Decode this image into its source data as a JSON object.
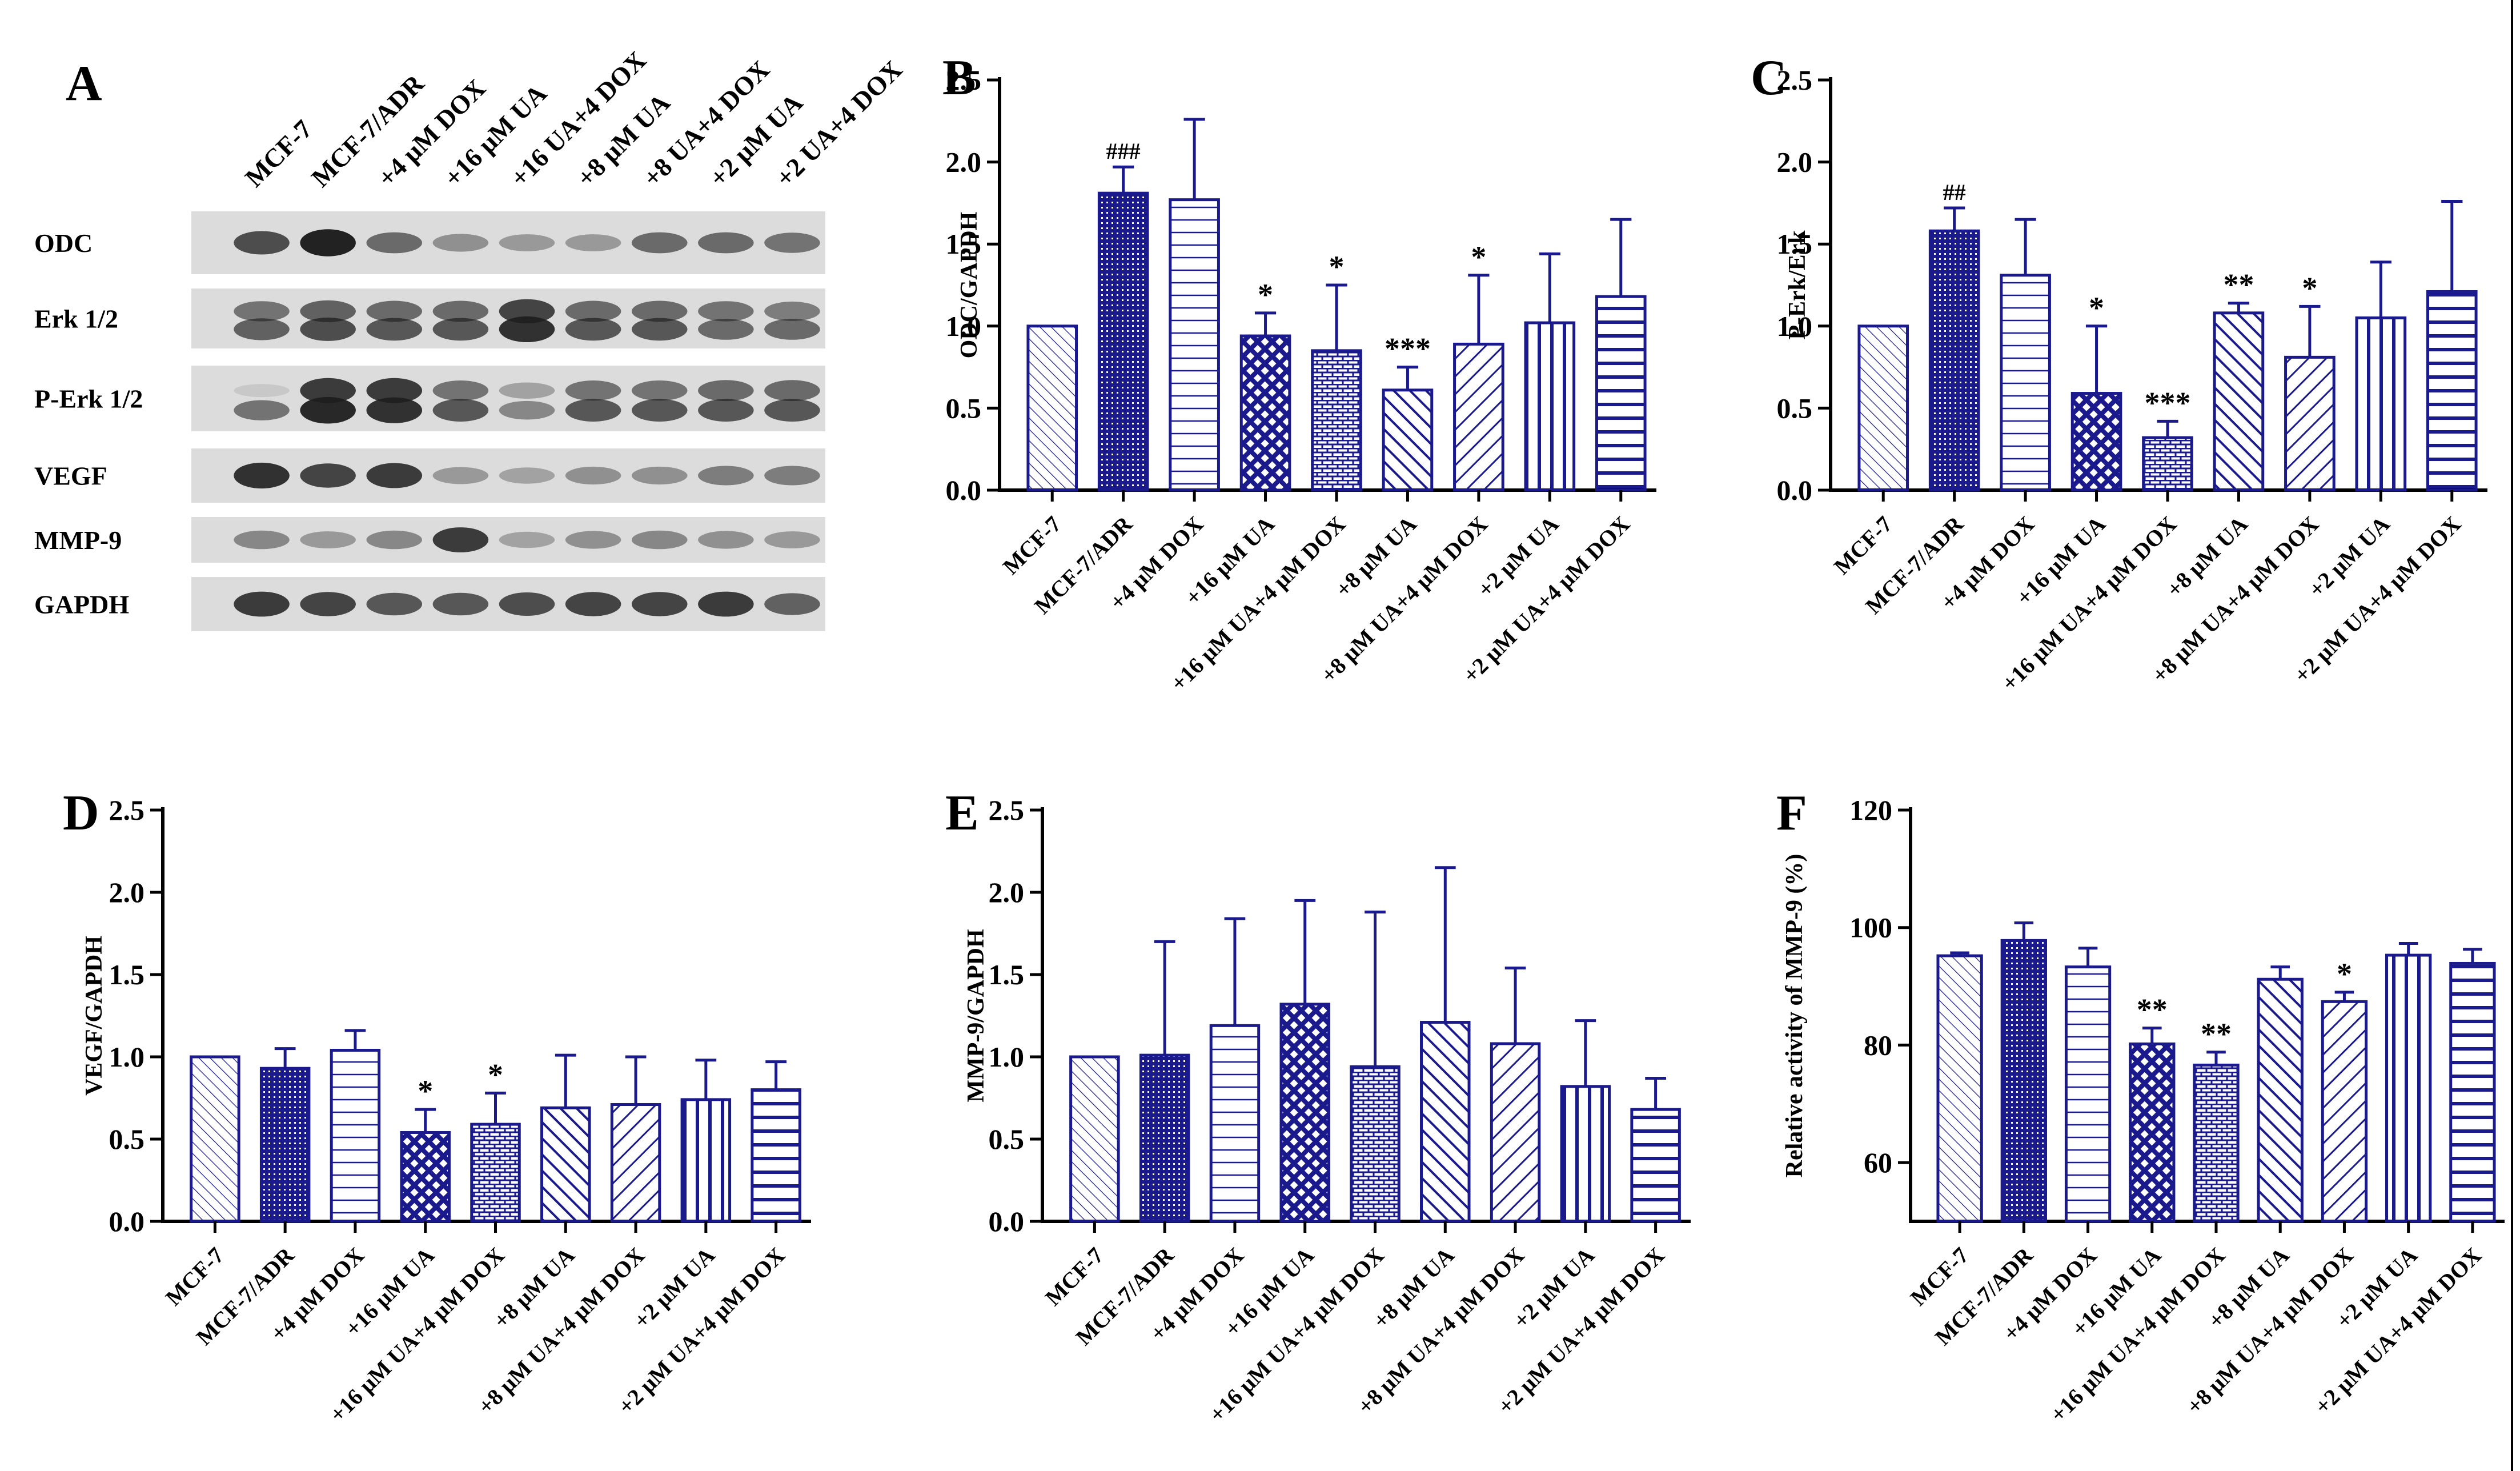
{
  "colors": {
    "bar": "#1a1a8c",
    "axis": "#000000",
    "blot_bg": "#dcdcdc",
    "band": "#1e1e1e"
  },
  "blot": {
    "letter": "A",
    "lanes": [
      "MCF-7",
      "MCF-7/ADR",
      "+4 μM DOX",
      "+16 μM UA",
      "+16 UA+4 DOX",
      "+8 μM UA",
      "+8 UA+4 DOX",
      "+2 μM UA",
      "+2 UA+4 DOX"
    ],
    "rows": [
      {
        "label": "ODC",
        "intensity": [
          [
            0.75,
            0.98,
            0.6,
            0.4,
            0.35,
            0.35,
            0.6,
            0.6,
            0.55
          ]
        ]
      },
      {
        "label": "Erk 1/2",
        "intensity": [
          [
            0.55,
            0.65,
            0.6,
            0.6,
            0.8,
            0.6,
            0.6,
            0.55,
            0.5
          ],
          [
            0.65,
            0.75,
            0.7,
            0.7,
            0.9,
            0.7,
            0.7,
            0.6,
            0.6
          ]
        ]
      },
      {
        "label": "P-Erk 1/2",
        "intensity": [
          [
            0.1,
            0.85,
            0.85,
            0.55,
            0.3,
            0.55,
            0.55,
            0.6,
            0.6
          ],
          [
            0.55,
            0.95,
            0.9,
            0.7,
            0.45,
            0.7,
            0.7,
            0.7,
            0.7
          ]
        ]
      },
      {
        "label": "VEGF",
        "intensity": [
          [
            0.9,
            0.8,
            0.85,
            0.35,
            0.3,
            0.4,
            0.4,
            0.5,
            0.5
          ]
        ]
      },
      {
        "label": "MMP-9",
        "intensity": [
          [
            0.45,
            0.35,
            0.45,
            0.85,
            0.3,
            0.4,
            0.45,
            0.4,
            0.35
          ]
        ]
      },
      {
        "label": "GAPDH",
        "intensity": [
          [
            0.85,
            0.8,
            0.7,
            0.7,
            0.75,
            0.8,
            0.8,
            0.85,
            0.65
          ]
        ]
      }
    ]
  },
  "chart_data": [
    {
      "type": "bar",
      "panel": "B",
      "ylabel": "ODC/GAPDH",
      "ylim": [
        0,
        2.5
      ],
      "yticks": [
        "0.0",
        "0.5",
        "1.0",
        "1.5",
        "2.0",
        "2.5"
      ],
      "categories": [
        "MCF-7",
        "MCF-7/ADR",
        "+4 μM DOX",
        "+16 μM UA",
        "+16 μM UA+4 μM DOX",
        "+8 μM UA",
        "+8 μM UA+4 μM DOX",
        "+2 μM UA",
        "+2 μM UA+4 μM DOX"
      ],
      "values": [
        1.0,
        1.81,
        1.77,
        0.94,
        0.85,
        0.61,
        0.89,
        1.02,
        1.18
      ],
      "errors": [
        0,
        0.16,
        0.49,
        0.14,
        0.4,
        0.14,
        0.42,
        0.42,
        0.47
      ],
      "significance": [
        "",
        "###",
        "",
        "*",
        "*",
        "***",
        "*",
        "",
        ""
      ]
    },
    {
      "type": "bar",
      "panel": "C",
      "ylabel": "P-Erk/Erk",
      "ylim": [
        0,
        2.5
      ],
      "yticks": [
        "0.0",
        "0.5",
        "1.0",
        "1.5",
        "2.0",
        "2.5"
      ],
      "categories": [
        "MCF-7",
        "MCF-7/ADR",
        "+4 μM DOX",
        "+16 μM UA",
        "+16 μM UA+4 μM DOX",
        "+8 μM UA",
        "+8 μM UA+4 μM DOX",
        "+2 μM UA",
        "+2 μM UA+4 μM DOX"
      ],
      "values": [
        1.0,
        1.58,
        1.31,
        0.59,
        0.32,
        1.08,
        0.81,
        1.05,
        1.21
      ],
      "errors": [
        0,
        0.14,
        0.34,
        0.41,
        0.1,
        0.06,
        0.31,
        0.34,
        0.55
      ],
      "significance": [
        "",
        "##",
        "",
        "*",
        "***",
        "**",
        "*",
        "",
        ""
      ]
    },
    {
      "type": "bar",
      "panel": "D",
      "ylabel": "VEGF/GAPDH",
      "ylim": [
        0,
        2.5
      ],
      "yticks": [
        "0.0",
        "0.5",
        "1.0",
        "1.5",
        "2.0",
        "2.5"
      ],
      "categories": [
        "MCF-7",
        "MCF-7/ADR",
        "+4 μM DOX",
        "+16 μM UA",
        "+16 μM UA+4 μM DOX",
        "+8 μM UA",
        "+8 μM UA+4 μM DOX",
        "+2 μM UA",
        "+2 μM UA+4 μM DOX"
      ],
      "values": [
        1.0,
        0.93,
        1.04,
        0.54,
        0.59,
        0.69,
        0.71,
        0.74,
        0.8
      ],
      "errors": [
        0,
        0.12,
        0.12,
        0.14,
        0.19,
        0.32,
        0.29,
        0.24,
        0.17
      ],
      "significance": [
        "",
        "",
        "",
        "*",
        "*",
        "",
        "",
        "",
        ""
      ]
    },
    {
      "type": "bar",
      "panel": "E",
      "ylabel": "MMP-9/GAPDH",
      "ylim": [
        0,
        2.5
      ],
      "yticks": [
        "0.0",
        "0.5",
        "1.0",
        "1.5",
        "2.0",
        "2.5"
      ],
      "categories": [
        "MCF-7",
        "MCF-7/ADR",
        "+4 μM DOX",
        "+16 μM UA",
        "+16 μM UA+4 μM DOX",
        "+8 μM UA",
        "+8 μM UA+4 μM DOX",
        "+2 μM UA",
        "+2 μM UA+4 μM DOX"
      ],
      "values": [
        1.0,
        1.01,
        1.19,
        1.32,
        0.94,
        1.21,
        1.08,
        0.82,
        0.68
      ],
      "errors": [
        0,
        0.69,
        0.65,
        0.63,
        0.94,
        0.94,
        0.46,
        0.4,
        0.19
      ],
      "significance": [
        "",
        "",
        "",
        "",
        "",
        "",
        "",
        "",
        ""
      ]
    },
    {
      "type": "bar",
      "panel": "F",
      "ylabel": "Relative activity of MMP-9 (%)",
      "ylim": [
        50,
        120
      ],
      "yticks": [
        "60",
        "80",
        "100",
        "120"
      ],
      "categories": [
        "MCF-7",
        "MCF-7/ADR",
        "+4 μM DOX",
        "+16 μM UA",
        "+16 μM UA+4 μM DOX",
        "+8 μM UA",
        "+8 μM UA+4 μM DOX",
        "+2 μM UA",
        "+2 μM UA+4 μM DOX"
      ],
      "values": [
        95.2,
        97.8,
        93.3,
        80.2,
        76.6,
        91.2,
        87.4,
        95.3,
        93.9
      ],
      "errors": [
        0.5,
        3.0,
        3.2,
        2.7,
        2.2,
        2.1,
        1.6,
        2.0,
        2.4
      ],
      "significance": [
        "",
        "",
        "",
        "**",
        "**",
        "",
        "*",
        "",
        ""
      ]
    }
  ]
}
